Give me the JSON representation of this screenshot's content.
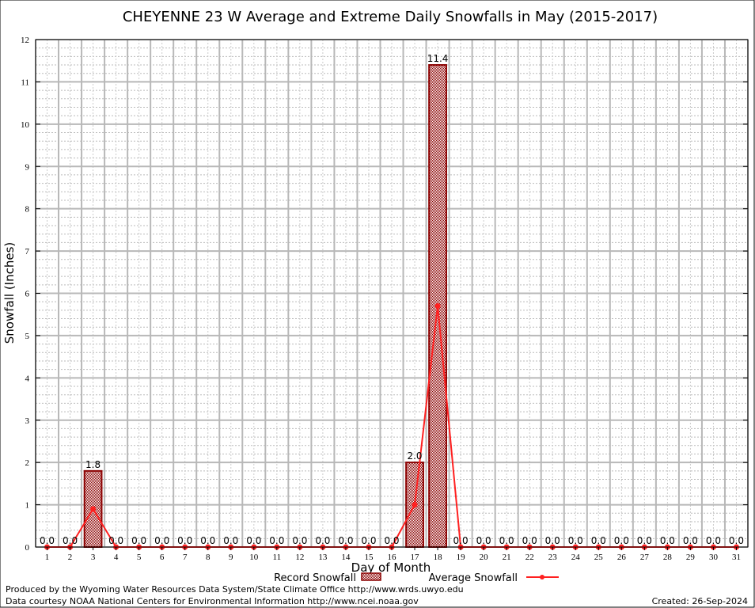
{
  "chart_data": {
    "type": "bar",
    "title": "CHEYENNE 23 W Average and Extreme Daily Snowfalls in May (2015-2017)",
    "xlabel": "Day of Month",
    "ylabel": "Snowfall (Inches)",
    "ylim": [
      0,
      12
    ],
    "yticks": [
      0,
      1,
      2,
      3,
      4,
      5,
      6,
      7,
      8,
      9,
      10,
      11,
      12
    ],
    "grid": true,
    "legend_position": "bottom",
    "categories": [
      1,
      2,
      3,
      4,
      5,
      6,
      7,
      8,
      9,
      10,
      11,
      12,
      13,
      14,
      15,
      16,
      17,
      18,
      19,
      20,
      21,
      22,
      23,
      24,
      25,
      26,
      27,
      28,
      29,
      30,
      31
    ],
    "series": [
      {
        "name": "Record Snowfall",
        "kind": "bar",
        "color": "#8b0000",
        "values": [
          0,
          0,
          1.8,
          0,
          0,
          0,
          0,
          0,
          0,
          0,
          0,
          0,
          0,
          0,
          0,
          0,
          2.0,
          11.4,
          0,
          0,
          0,
          0,
          0,
          0,
          0,
          0,
          0,
          0,
          0,
          0,
          0
        ]
      },
      {
        "name": "Average Snowfall",
        "kind": "line",
        "color": "#ff2020",
        "values": [
          0,
          0,
          0.9,
          0,
          0,
          0,
          0,
          0,
          0,
          0,
          0,
          0,
          0,
          0,
          0,
          0,
          1.0,
          5.7,
          0,
          0,
          0,
          0,
          0,
          0,
          0,
          0,
          0,
          0,
          0,
          0,
          0
        ]
      }
    ]
  },
  "footer": {
    "produced_by": "Produced by the Wyoming Water Resources Data System/State Climate Office http://www.wrds.uwyo.edu",
    "courtesy": "Data courtesy NOAA National Centers for Environmental Information http://www.ncei.noaa.gov",
    "created": "Created: 26-Sep-2024"
  }
}
